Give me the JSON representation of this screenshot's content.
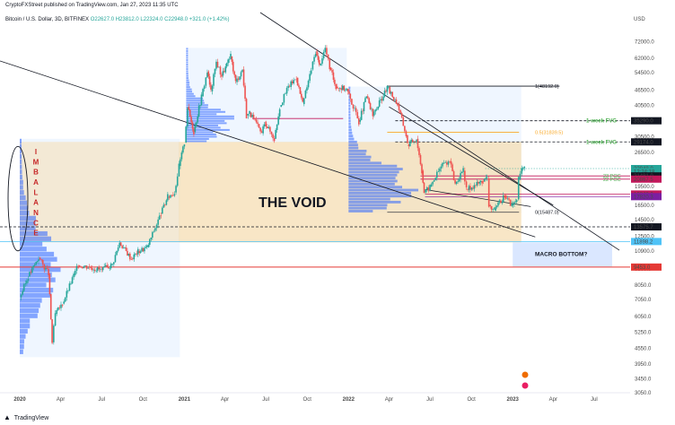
{
  "header": {
    "published": "CryptoFXStreet published on TradingView.com, Jan 27, 2023 11:35 UTC",
    "symbol": "Bitcoin / U.S. Dollar, 3D, BITFINEX",
    "ohlc": "O22627.0  H23812.0  L22324.0  C22948.0  +321.0 (+1.42%)"
  },
  "footer": {
    "brand": "TradingView",
    "logo": "tradingview-logo-icon"
  },
  "colors": {
    "up": "#26a69a",
    "down": "#ef5350",
    "void_zone": "#f5deb3",
    "volume_profile": "#2962ff",
    "value_area": "#dbeafe",
    "fvg_text": "#4caf50",
    "poc_line": "#c2185b",
    "macro_line": "#e53935",
    "trend_line": "#131722",
    "fib_gold": "#f9a825",
    "imbalance_text": "#c62828"
  },
  "chart_data": {
    "type": "candlestick",
    "y_scale": "log",
    "y_unit": "USD",
    "ylim": [
      3050,
      95000
    ],
    "x_range": [
      "2020-01-01",
      "2023-09-15"
    ],
    "x_ticks": [
      {
        "date": "2020-01-01",
        "label": "2020",
        "bold": true
      },
      {
        "date": "2020-04-01",
        "label": "Apr"
      },
      {
        "date": "2020-07-01",
        "label": "Jul"
      },
      {
        "date": "2020-10-01",
        "label": "Oct"
      },
      {
        "date": "2021-01-01",
        "label": "2021",
        "bold": true
      },
      {
        "date": "2021-04-01",
        "label": "Apr"
      },
      {
        "date": "2021-07-01",
        "label": "Jul"
      },
      {
        "date": "2021-10-01",
        "label": "Oct"
      },
      {
        "date": "2022-01-01",
        "label": "2022",
        "bold": true
      },
      {
        "date": "2022-04-01",
        "label": "Apr"
      },
      {
        "date": "2022-07-01",
        "label": "Jul"
      },
      {
        "date": "2022-10-01",
        "label": "Oct"
      },
      {
        "date": "2023-01-01",
        "label": "2023",
        "bold": true
      },
      {
        "date": "2023-04-01",
        "label": "Apr"
      },
      {
        "date": "2023-07-01",
        "label": "Jul"
      }
    ],
    "y_ticks": [
      84000,
      72000,
      62000,
      54500,
      46500,
      40500,
      35000,
      30500,
      26500,
      22500,
      19500,
      16500,
      14500,
      12500,
      10900,
      9300,
      8050,
      7050,
      6050,
      5250,
      4550,
      3950,
      3450,
      3050
    ],
    "y_tick_labels": [
      "84000.0",
      "72000.0",
      "62000.0",
      "54500.0",
      "46500.0",
      "40500.0",
      "35000.0",
      "30500.0",
      "26500.0",
      "22500.0",
      "19500.0",
      "16500.0",
      "14500.0",
      "12500.0",
      "10900.0",
      "9300.0",
      "8050.0",
      "7050.0",
      "6050.0",
      "5250.0",
      "4550.0",
      "3950.0",
      "3450.0",
      "3050.0"
    ],
    "price_path": [
      [
        "2020-01-01",
        7200
      ],
      [
        "2020-01-20",
        8700
      ],
      [
        "2020-02-12",
        10300
      ],
      [
        "2020-03-05",
        8900
      ],
      [
        "2020-03-13",
        4800
      ],
      [
        "2020-03-20",
        6200
      ],
      [
        "2020-04-05",
        6800
      ],
      [
        "2020-04-30",
        8800
      ],
      [
        "2020-05-10",
        9600
      ],
      [
        "2020-06-01",
        9500
      ],
      [
        "2020-07-01",
        9200
      ],
      [
        "2020-07-25",
        9700
      ],
      [
        "2020-08-10",
        11800
      ],
      [
        "2020-09-05",
        10200
      ],
      [
        "2020-09-20",
        10900
      ],
      [
        "2020-10-10",
        11300
      ],
      [
        "2020-10-25",
        13100
      ],
      [
        "2020-11-10",
        15300
      ],
      [
        "2020-11-25",
        17800
      ],
      [
        "2020-12-10",
        18500
      ],
      [
        "2020-12-20",
        23500
      ],
      [
        "2021-01-01",
        29000
      ],
      [
        "2021-01-08",
        40000
      ],
      [
        "2021-01-22",
        32000
      ],
      [
        "2021-02-08",
        44000
      ],
      [
        "2021-02-21",
        55000
      ],
      [
        "2021-03-01",
        46000
      ],
      [
        "2021-03-13",
        60000
      ],
      [
        "2021-03-25",
        53000
      ],
      [
        "2021-04-14",
        63000
      ],
      [
        "2021-04-25",
        50000
      ],
      [
        "2021-05-10",
        56000
      ],
      [
        "2021-05-19",
        37000
      ],
      [
        "2021-05-26",
        38000
      ],
      [
        "2021-06-22",
        31500
      ],
      [
        "2021-06-28",
        35000
      ],
      [
        "2021-07-20",
        30000
      ],
      [
        "2021-08-01",
        40000
      ],
      [
        "2021-08-20",
        48000
      ],
      [
        "2021-09-07",
        52000
      ],
      [
        "2021-09-21",
        41000
      ],
      [
        "2021-10-10",
        56000
      ],
      [
        "2021-10-20",
        66000
      ],
      [
        "2021-10-28",
        58000
      ],
      [
        "2021-11-10",
        68000
      ],
      [
        "2021-11-20",
        57000
      ],
      [
        "2021-12-04",
        48000
      ],
      [
        "2021-12-28",
        47000
      ],
      [
        "2022-01-05",
        43000
      ],
      [
        "2022-01-24",
        35000
      ],
      [
        "2022-02-10",
        44000
      ],
      [
        "2022-02-24",
        37000
      ],
      [
        "2022-03-28",
        47500
      ],
      [
        "2022-04-20",
        41000
      ],
      [
        "2022-05-09",
        31000
      ],
      [
        "2022-05-12",
        28500
      ],
      [
        "2022-06-01",
        30000
      ],
      [
        "2022-06-13",
        22500
      ],
      [
        "2022-06-18",
        18500
      ],
      [
        "2022-07-01",
        19500
      ],
      [
        "2022-07-29",
        24000
      ],
      [
        "2022-08-14",
        24500
      ],
      [
        "2022-08-26",
        20000
      ],
      [
        "2022-09-13",
        22500
      ],
      [
        "2022-09-20",
        19000
      ],
      [
        "2022-10-25",
        20500
      ],
      [
        "2022-11-05",
        21000
      ],
      [
        "2022-11-09",
        16500
      ],
      [
        "2022-11-21",
        15700
      ],
      [
        "2022-12-14",
        18000
      ],
      [
        "2022-12-30",
        16500
      ],
      [
        "2023-01-10",
        17400
      ],
      [
        "2023-01-14",
        20800
      ],
      [
        "2023-01-21",
        22800
      ],
      [
        "2023-01-27",
        22948
      ]
    ],
    "void_zone": {
      "from": "2020-12-19",
      "to": "2023-01-20",
      "low": 11800,
      "high": 29174
    },
    "void_label": "THE VOID",
    "imbalance_label": "IMBALANCE",
    "annotations": [
      {
        "label": "1(48192.0)",
        "price": 48192
      },
      {
        "label": "0.5(31839.5)",
        "price": 31839.5
      },
      {
        "label": "0(15487.0)",
        "price": 15487
      },
      {
        "label": "1-week FVG",
        "price": 35290
      },
      {
        "label": "1-week FVG",
        "price": 29174
      },
      {
        "label": "23 POC",
        "price": 21481
      },
      {
        "label": "22 POC",
        "price": 20867
      },
      {
        "label": "MACRO BOTTOM?",
        "price": 10600
      }
    ],
    "price_tags": [
      {
        "label": "35290.0",
        "price": 35290,
        "bg": "#131722",
        "fg": "#ffffff"
      },
      {
        "label": "29174.0",
        "price": 29174,
        "bg": "#131722",
        "fg": "#ffffff"
      },
      {
        "label": "22948.0",
        "price": 22948,
        "bg": "#26a69a",
        "fg": "#ffffff"
      },
      {
        "label": "12:24:18",
        "price": 22300,
        "bg": "#26a69a",
        "fg": "#ffffff"
      },
      {
        "label": "21481.0",
        "price": 21481,
        "bg": "#131722",
        "fg": "#ffffff"
      },
      {
        "label": "20867.5",
        "price": 20867.5,
        "bg": "#c2185b",
        "fg": "#ffffff"
      },
      {
        "label": "18248.0",
        "price": 18248,
        "bg": "#c2185b",
        "fg": "#ffffff"
      },
      {
        "label": "17820.3",
        "price": 17820.3,
        "bg": "#7b1fa2",
        "fg": "#ffffff"
      },
      {
        "label": "13575.7",
        "price": 13575.7,
        "bg": "#131722",
        "fg": "#ffffff"
      },
      {
        "label": "11898.2",
        "price": 11898.2,
        "bg": "#4fc3f7",
        "fg": "#131722"
      },
      {
        "label": "9453.0",
        "price": 9453,
        "bg": "#e53935",
        "fg": "#ffffff"
      }
    ],
    "axis_currency": "USD"
  }
}
